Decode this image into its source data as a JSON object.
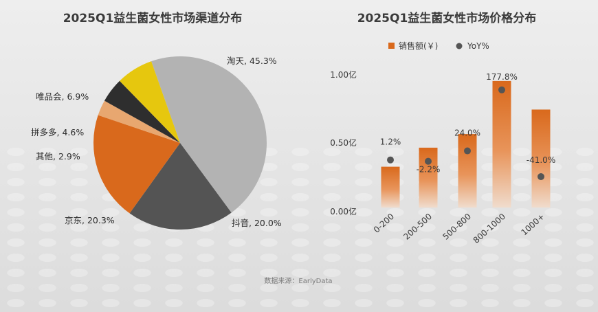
{
  "chart_data": [
    {
      "type": "pie",
      "title": "2025Q1益生菌女性市场渠道分布",
      "slices": [
        {
          "label": "淘天",
          "value": 45.3,
          "label_text": "淘天, 45.3%",
          "color": "#b3b3b3"
        },
        {
          "label": "抖音",
          "value": 20.0,
          "label_text": "抖音, 20.0%",
          "color": "#545454"
        },
        {
          "label": "京东",
          "value": 20.3,
          "label_text": "京东, 20.3%",
          "color": "#d9691c"
        },
        {
          "label": "其他",
          "value": 2.9,
          "label_text": "其他, 2.9%",
          "color": "#e8a770"
        },
        {
          "label": "拼多多",
          "value": 4.6,
          "label_text": "拼多多, 4.6%",
          "color": "#2e2e2e"
        },
        {
          "label": "唯品会",
          "value": 6.9,
          "label_text": "唯品会, 6.9%",
          "color": "#e6c70e"
        }
      ]
    },
    {
      "type": "bar",
      "title": "2025Q1益生菌女性市场价格分布",
      "categories": [
        "0-200",
        "200-500",
        "500-800",
        "800-1000",
        "1000+"
      ],
      "series": [
        {
          "name": "销售额(￥)",
          "values": [
            0.3,
            0.44,
            0.54,
            0.93,
            0.72
          ],
          "color": "#d9691c"
        },
        {
          "name": "YoY%",
          "values": [
            1.2,
            -2.2,
            24.0,
            177.8,
            -41.0
          ],
          "labels": [
            "1.2%",
            "-2.2%",
            "24.0%",
            "177.8%",
            "-41.0%"
          ],
          "color": "#555555"
        }
      ],
      "y_ticks": [
        "1.00亿",
        "0.50亿",
        "0.00亿"
      ],
      "ylim": [
        0,
        1.0
      ],
      "legend_position": "top"
    }
  ],
  "source_text": "数据来源：EarlyData"
}
